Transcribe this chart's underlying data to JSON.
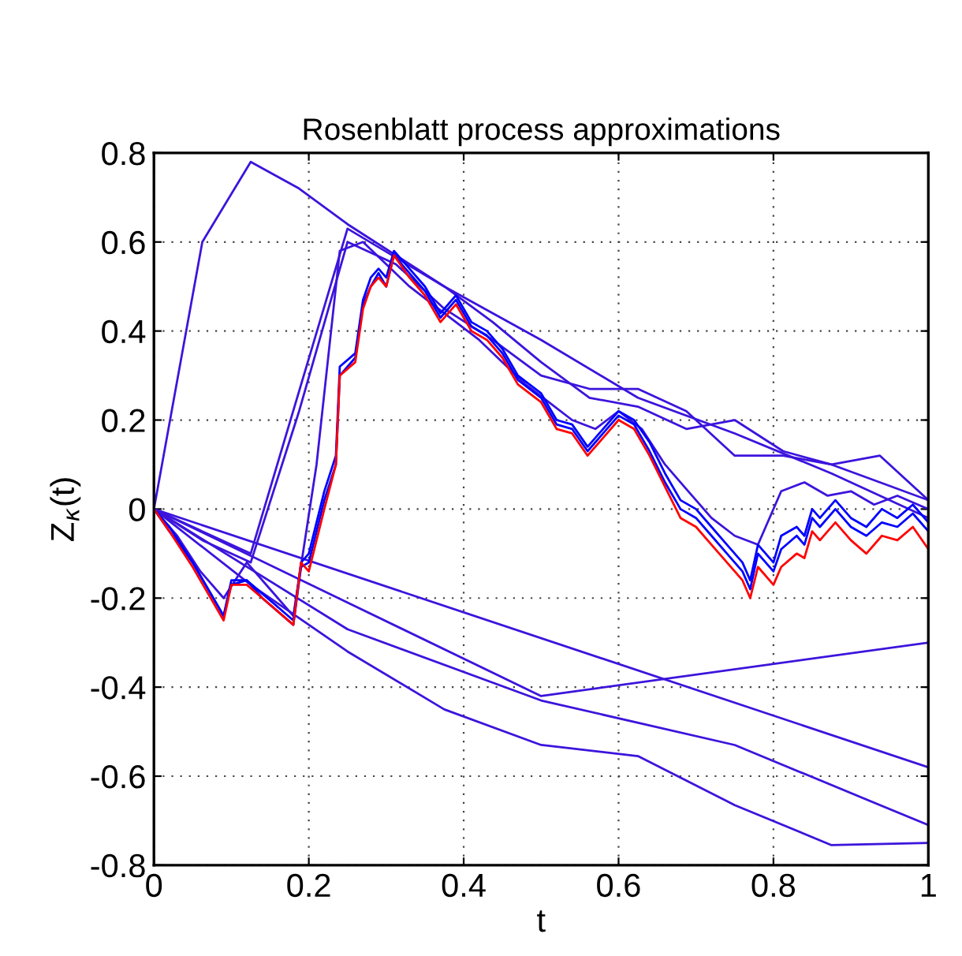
{
  "chart_data": {
    "type": "line",
    "title": "Rosenblatt process approximations",
    "xlabel": "t",
    "ylabel": "Z$_{κ}$(t)",
    "xlim": [
      0,
      1
    ],
    "ylim": [
      -0.8,
      0.8
    ],
    "xticks": [
      0,
      0.2,
      0.4,
      0.6,
      0.8,
      1
    ],
    "yticks": [
      {
        "value": -0.8,
        "label": "-0.8"
      },
      {
        "value": -0.6,
        "label": "-0.6"
      },
      {
        "value": -0.4,
        "label": "-0.4"
      },
      {
        "value": -0.2,
        "label": "-0.2"
      },
      0,
      0.2,
      0.4,
      0.6,
      0.8
    ],
    "grid": true,
    "line_style": "solid",
    "marker": "none",
    "series": [
      {
        "color": "#3c14dc",
        "x": [
          0,
          0.5,
          1
        ],
        "values": [
          0,
          -0.42,
          -0.3
        ]
      },
      {
        "color": "#3c14dc",
        "x": [
          0,
          1
        ],
        "values": [
          0,
          -0.58
        ]
      },
      {
        "color": "#3c14dc",
        "x": [
          0,
          0.25,
          0.5,
          0.75,
          1
        ],
        "values": [
          0,
          -0.27,
          -0.43,
          -0.53,
          -0.71
        ]
      },
      {
        "color": "#3c14dc",
        "x": [
          0,
          0.125,
          0.25,
          0.375,
          0.5,
          0.625,
          0.75,
          0.875,
          1
        ],
        "values": [
          0,
          -0.17,
          -0.32,
          -0.45,
          -0.53,
          -0.555,
          -0.665,
          -0.755,
          -0.75
        ]
      },
      {
        "color": "#3c14dc",
        "x": [
          0,
          0.0625,
          0.125,
          0.1875,
          0.25,
          0.3125,
          0.375,
          0.4375,
          0.5,
          0.5625,
          0.625,
          0.6875,
          0.75,
          0.8125,
          0.875,
          0.9375,
          1
        ],
        "values": [
          0,
          0.6,
          0.78,
          0.72,
          0.64,
          0.57,
          0.5,
          0.42,
          0.33,
          0.25,
          0.23,
          0.18,
          0.2,
          0.13,
          0.1,
          0.06,
          0.02
        ]
      },
      {
        "color": "#3c14dc",
        "x": [
          0,
          0.0625,
          0.125,
          0.1875,
          0.25,
          0.3125,
          0.375,
          0.4375,
          0.5,
          0.5625,
          0.625,
          0.6875,
          0.75,
          0.8125,
          0.875,
          0.9375,
          1
        ],
        "values": [
          0,
          -0.07,
          -0.12,
          0.22,
          0.6,
          0.55,
          0.45,
          0.38,
          0.3,
          0.27,
          0.27,
          0.22,
          0.12,
          0.12,
          0.1,
          0.12,
          0.02
        ]
      },
      {
        "color": "#3c14dc",
        "x": [
          0,
          0.125,
          0.25,
          0.375,
          0.5,
          0.625,
          0.75,
          0.875,
          1
        ],
        "values": [
          0,
          -0.1,
          0.63,
          0.5,
          0.38,
          0.25,
          0.17,
          0.08,
          -0.02
        ]
      },
      {
        "color": "#3c14dc",
        "x": [
          0,
          0.03,
          0.06,
          0.09,
          0.12,
          0.15,
          0.18,
          0.21,
          0.24,
          0.27,
          0.3,
          0.33,
          0.36,
          0.39,
          0.42,
          0.45,
          0.48,
          0.51,
          0.54,
          0.57,
          0.6,
          0.63,
          0.66,
          0.69,
          0.72,
          0.75,
          0.78,
          0.81,
          0.84,
          0.87,
          0.9,
          0.93,
          0.96,
          1
        ],
        "values": [
          0,
          -0.06,
          -0.14,
          -0.2,
          -0.12,
          -0.18,
          -0.24,
          0.1,
          0.58,
          0.6,
          0.55,
          0.5,
          0.46,
          0.42,
          0.38,
          0.33,
          0.28,
          0.24,
          0.2,
          0.18,
          0.22,
          0.18,
          0.1,
          0.04,
          -0.02,
          -0.06,
          -0.08,
          0.04,
          0.06,
          0.03,
          0.04,
          0.01,
          0.03,
          0.0
        ]
      },
      {
        "color": "#0000ff",
        "x": [
          0,
          0.02,
          0.05,
          0.09,
          0.1,
          0.12,
          0.14,
          0.18,
          0.19,
          0.2,
          0.22,
          0.235,
          0.24,
          0.26,
          0.27,
          0.28,
          0.29,
          0.3,
          0.31,
          0.33,
          0.35,
          0.37,
          0.39,
          0.41,
          0.43,
          0.45,
          0.47,
          0.5,
          0.52,
          0.54,
          0.56,
          0.58,
          0.6,
          0.62,
          0.64,
          0.66,
          0.68,
          0.7,
          0.72,
          0.74,
          0.76,
          0.77,
          0.78,
          0.8,
          0.81,
          0.83,
          0.84,
          0.85,
          0.86,
          0.88,
          0.9,
          0.92,
          0.94,
          0.96,
          0.98,
          1
        ],
        "values": [
          0,
          -0.04,
          -0.12,
          -0.24,
          -0.16,
          -0.16,
          -0.19,
          -0.25,
          -0.12,
          -0.1,
          0.04,
          0.12,
          0.32,
          0.35,
          0.47,
          0.52,
          0.54,
          0.52,
          0.58,
          0.54,
          0.5,
          0.44,
          0.48,
          0.42,
          0.4,
          0.36,
          0.3,
          0.26,
          0.2,
          0.19,
          0.14,
          0.18,
          0.22,
          0.2,
          0.15,
          0.08,
          0.02,
          0.0,
          -0.04,
          -0.08,
          -0.12,
          -0.16,
          -0.08,
          -0.12,
          -0.06,
          -0.04,
          -0.06,
          0.0,
          -0.02,
          0.02,
          -0.02,
          -0.04,
          0.0,
          -0.02,
          0.01,
          -0.03
        ]
      },
      {
        "color": "#0000ff",
        "x": [
          0,
          0.02,
          0.05,
          0.09,
          0.1,
          0.12,
          0.14,
          0.18,
          0.19,
          0.2,
          0.22,
          0.235,
          0.24,
          0.26,
          0.27,
          0.28,
          0.29,
          0.3,
          0.31,
          0.33,
          0.35,
          0.37,
          0.39,
          0.41,
          0.43,
          0.45,
          0.47,
          0.5,
          0.52,
          0.54,
          0.56,
          0.58,
          0.6,
          0.62,
          0.64,
          0.66,
          0.68,
          0.7,
          0.72,
          0.74,
          0.76,
          0.77,
          0.78,
          0.8,
          0.81,
          0.83,
          0.84,
          0.85,
          0.86,
          0.88,
          0.9,
          0.92,
          0.94,
          0.96,
          0.98,
          1
        ],
        "values": [
          0,
          -0.05,
          -0.12,
          -0.24,
          -0.17,
          -0.16,
          -0.2,
          -0.26,
          -0.13,
          -0.12,
          0.02,
          0.1,
          0.3,
          0.34,
          0.46,
          0.5,
          0.53,
          0.5,
          0.57,
          0.53,
          0.49,
          0.43,
          0.47,
          0.41,
          0.39,
          0.35,
          0.29,
          0.25,
          0.19,
          0.18,
          0.13,
          0.17,
          0.21,
          0.19,
          0.13,
          0.06,
          0.0,
          -0.02,
          -0.06,
          -0.1,
          -0.14,
          -0.18,
          -0.1,
          -0.14,
          -0.09,
          -0.06,
          -0.08,
          -0.02,
          -0.04,
          0.0,
          -0.04,
          -0.06,
          -0.03,
          -0.04,
          -0.01,
          -0.05
        ]
      },
      {
        "color": "#ff0000",
        "x": [
          0,
          0.02,
          0.05,
          0.09,
          0.1,
          0.12,
          0.14,
          0.18,
          0.19,
          0.2,
          0.22,
          0.235,
          0.24,
          0.26,
          0.27,
          0.28,
          0.29,
          0.3,
          0.31,
          0.33,
          0.35,
          0.37,
          0.39,
          0.41,
          0.43,
          0.45,
          0.47,
          0.5,
          0.52,
          0.54,
          0.56,
          0.58,
          0.6,
          0.62,
          0.64,
          0.66,
          0.68,
          0.7,
          0.72,
          0.74,
          0.76,
          0.77,
          0.78,
          0.8,
          0.81,
          0.83,
          0.84,
          0.85,
          0.86,
          0.88,
          0.9,
          0.92,
          0.94,
          0.96,
          0.98,
          1
        ],
        "values": [
          0,
          -0.05,
          -0.13,
          -0.25,
          -0.17,
          -0.17,
          -0.2,
          -0.26,
          -0.12,
          -0.14,
          0.0,
          0.1,
          0.3,
          0.33,
          0.45,
          0.5,
          0.52,
          0.5,
          0.57,
          0.52,
          0.48,
          0.42,
          0.46,
          0.4,
          0.38,
          0.34,
          0.28,
          0.24,
          0.18,
          0.17,
          0.12,
          0.16,
          0.2,
          0.18,
          0.12,
          0.05,
          -0.02,
          -0.04,
          -0.08,
          -0.12,
          -0.16,
          -0.2,
          -0.13,
          -0.17,
          -0.13,
          -0.1,
          -0.11,
          -0.05,
          -0.07,
          -0.03,
          -0.07,
          -0.1,
          -0.06,
          -0.07,
          -0.04,
          -0.09
        ]
      }
    ]
  }
}
